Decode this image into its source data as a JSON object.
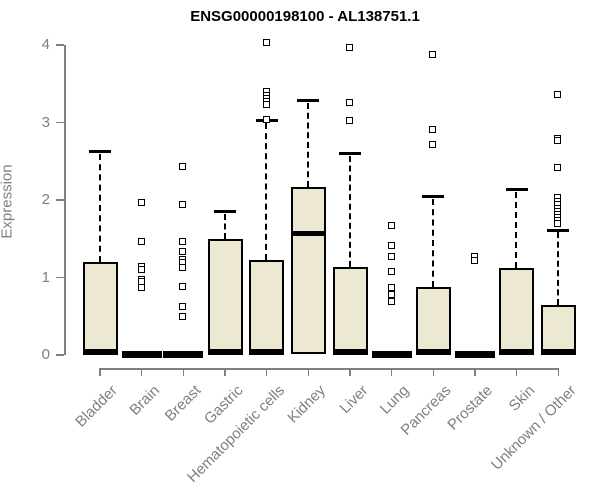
{
  "title": "ENSG00000198100 - AL138751.1",
  "chart_data": {
    "type": "boxplot",
    "title": "ENSG00000198100 - AL138751.1",
    "xlabel": "",
    "ylabel": "Expression",
    "ylim": [
      0,
      4
    ],
    "yticks": [
      0,
      1,
      2,
      3,
      4
    ],
    "grid": false,
    "legend": "none",
    "box_fill_color": "#EDE8D1",
    "box_border_color": "#000000",
    "axis_color": "#7f7f7f",
    "categories": [
      "Bladder",
      "Brain",
      "Breast",
      "Gastric",
      "Hematopoietic cells",
      "Kidney",
      "Liver",
      "Lung",
      "Pancreas",
      "Prostate",
      "Skin",
      "Unknown / Other"
    ],
    "series": [
      {
        "name": "Bladder",
        "q1": 0,
        "median": 0.02,
        "q3": 1.2,
        "whisker_low": 0,
        "whisker_high": 2.62,
        "outliers": []
      },
      {
        "name": "Brain",
        "q1": 0,
        "median": 0.01,
        "q3": 0.02,
        "whisker_low": 0,
        "whisker_high": 0.02,
        "outliers": [
          1.96,
          1.46,
          1.13,
          1.1,
          0.97,
          0.94,
          0.86
        ]
      },
      {
        "name": "Breast",
        "q1": 0,
        "median": 0.01,
        "q3": 0.02,
        "whisker_low": 0,
        "whisker_high": 0.02,
        "outliers": [
          2.43,
          1.94,
          1.46,
          1.33,
          1.23,
          1.19,
          1.12,
          0.88,
          0.62,
          0.49
        ]
      },
      {
        "name": "Gastric",
        "q1": 0,
        "median": 0.02,
        "q3": 1.5,
        "whisker_low": 0,
        "whisker_high": 1.85,
        "outliers": []
      },
      {
        "name": "Hematopoietic cells",
        "q1": 0,
        "median": 0.02,
        "q3": 1.22,
        "whisker_low": 0,
        "whisker_high": 3.02,
        "outliers": [
          4.03,
          3.4,
          3.34,
          3.3,
          3.26,
          3.22,
          3.03
        ]
      },
      {
        "name": "Kidney",
        "q1": 0.01,
        "median": 1.56,
        "q3": 2.17,
        "whisker_low": 0,
        "whisker_high": 3.28,
        "outliers": []
      },
      {
        "name": "Liver",
        "q1": 0,
        "median": 0.02,
        "q3": 1.14,
        "whisker_low": 0,
        "whisker_high": 2.6,
        "outliers": [
          3.96,
          3.25,
          3.02
        ]
      },
      {
        "name": "Lung",
        "q1": 0,
        "median": 0.01,
        "q3": 0.02,
        "whisker_low": 0,
        "whisker_high": 0.02,
        "outliers": [
          1.66,
          1.41,
          1.27,
          1.07,
          0.87,
          0.77,
          0.68
        ]
      },
      {
        "name": "Pancreas",
        "q1": 0,
        "median": 0.02,
        "q3": 0.88,
        "whisker_low": 0,
        "whisker_high": 2.04,
        "outliers": [
          3.87,
          2.9,
          2.71
        ]
      },
      {
        "name": "Prostate",
        "q1": 0,
        "median": 0.01,
        "q3": 0.02,
        "whisker_low": 0,
        "whisker_high": 0.02,
        "outliers": [
          1.27,
          1.21
        ]
      },
      {
        "name": "Skin",
        "q1": 0,
        "median": 0.02,
        "q3": 1.12,
        "whisker_low": 0,
        "whisker_high": 2.13,
        "outliers": []
      },
      {
        "name": "Unknown / Other",
        "q1": 0,
        "median": 0.02,
        "q3": 0.65,
        "whisker_low": 0,
        "whisker_high": 1.61,
        "outliers": [
          3.36,
          2.79,
          2.76,
          2.41,
          2.02,
          1.97,
          1.93,
          1.89,
          1.85,
          1.81,
          1.77,
          1.73,
          1.69
        ]
      }
    ]
  }
}
